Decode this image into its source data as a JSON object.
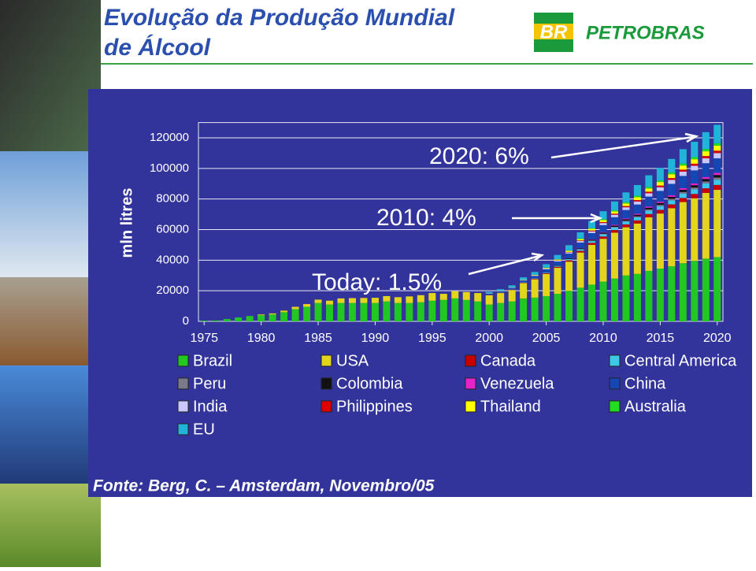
{
  "header": {
    "title_lines": [
      "Evolução da Produção Mundial",
      "de Álcool"
    ],
    "logo_mark": "BR",
    "logo_text": "PETROBRAS"
  },
  "chart_data": {
    "type": "stacked-bar",
    "y_label": "mln litres",
    "source": "Fonte: Berg, C. – Amsterdam, Novembro/05",
    "annotations": [
      "2020: 6%",
      "2010: 4%",
      "Today: 1.5%"
    ],
    "x": [
      1975,
      1976,
      1977,
      1978,
      1979,
      1980,
      1981,
      1982,
      1983,
      1984,
      1985,
      1986,
      1987,
      1988,
      1989,
      1990,
      1991,
      1992,
      1993,
      1994,
      1995,
      1996,
      1997,
      1998,
      1999,
      2000,
      2001,
      2002,
      2003,
      2004,
      2005,
      2006,
      2007,
      2008,
      2009,
      2010,
      2011,
      2012,
      2013,
      2014,
      2015,
      2016,
      2017,
      2018,
      2019,
      2020
    ],
    "xlim": [
      1974.5,
      2020.5
    ],
    "xticks": [
      1975,
      1980,
      1985,
      1990,
      1995,
      2000,
      2005,
      2010,
      2015,
      2020
    ],
    "ylim": [
      0,
      130000
    ],
    "yticks": [
      0,
      20000,
      40000,
      60000,
      80000,
      100000,
      120000
    ],
    "grid": true,
    "series": [
      {
        "name": "Brazil",
        "color": "#22c722",
        "values": [
          500,
          600,
          1500,
          2500,
          3500,
          4000,
          4500,
          6000,
          8000,
          9500,
          12000,
          11000,
          12000,
          12000,
          12000,
          12000,
          13000,
          12000,
          12000,
          12500,
          13500,
          14000,
          15000,
          14000,
          13000,
          11000,
          12000,
          13000,
          15000,
          15500,
          16500,
          18000,
          20000,
          22000,
          24000,
          26000,
          28000,
          30000,
          31000,
          33000,
          34500,
          36000,
          38000,
          39500,
          41000,
          42000
        ]
      },
      {
        "name": "USA",
        "color": "#e3d51c",
        "values": [
          0,
          0,
          0,
          0,
          0,
          500,
          700,
          1000,
          1500,
          1800,
          2200,
          2500,
          3000,
          3200,
          3300,
          3400,
          3500,
          3800,
          4300,
          4600,
          5000,
          4000,
          4700,
          5200,
          5500,
          6000,
          6500,
          7500,
          10000,
          12000,
          14500,
          17000,
          19000,
          23000,
          26000,
          28000,
          30000,
          31500,
          33000,
          35000,
          36000,
          38000,
          40000,
          41000,
          43000,
          44000
        ]
      },
      {
        "name": "Canada",
        "color": "#c80000",
        "values": [
          0,
          0,
          0,
          0,
          0,
          0,
          0,
          0,
          0,
          0,
          0,
          0,
          0,
          0,
          0,
          0,
          0,
          0,
          0,
          0,
          0,
          0,
          0,
          0,
          0,
          200,
          200,
          250,
          300,
          400,
          500,
          700,
          900,
          1100,
          1300,
          1500,
          1700,
          1900,
          2000,
          2200,
          2400,
          2500,
          2700,
          2800,
          3000,
          3200
        ]
      },
      {
        "name": "Central America",
        "color": "#3cc8e6",
        "values": [
          0,
          0,
          0,
          0,
          0,
          0,
          0,
          0,
          0,
          0,
          0,
          0,
          0,
          0,
          0,
          0,
          0,
          0,
          0,
          0,
          0,
          0,
          0,
          0,
          0,
          100,
          100,
          150,
          200,
          300,
          400,
          600,
          800,
          1000,
          1200,
          1400,
          1600,
          1800,
          2000,
          2200,
          2400,
          2600,
          2800,
          3000,
          3200,
          3400
        ]
      },
      {
        "name": "Peru",
        "color": "#7a7a8a",
        "values": [
          0,
          0,
          0,
          0,
          0,
          0,
          0,
          0,
          0,
          0,
          0,
          0,
          0,
          0,
          0,
          0,
          0,
          0,
          0,
          0,
          0,
          0,
          0,
          0,
          0,
          0,
          0,
          0,
          0,
          0,
          0,
          0,
          100,
          200,
          300,
          400,
          500,
          600,
          700,
          800,
          900,
          1000,
          1100,
          1200,
          1300,
          1400
        ]
      },
      {
        "name": "Colombia",
        "color": "#111111",
        "values": [
          0,
          0,
          0,
          0,
          0,
          0,
          0,
          0,
          0,
          0,
          0,
          0,
          0,
          0,
          0,
          0,
          0,
          0,
          0,
          0,
          0,
          0,
          0,
          0,
          0,
          0,
          0,
          0,
          0,
          0,
          100,
          300,
          400,
          500,
          600,
          700,
          800,
          900,
          1000,
          1100,
          1200,
          1300,
          1400,
          1500,
          1600,
          1700
        ]
      },
      {
        "name": "Venezuela",
        "color": "#e622c8",
        "values": [
          0,
          0,
          0,
          0,
          0,
          0,
          0,
          0,
          0,
          0,
          0,
          0,
          0,
          0,
          0,
          0,
          0,
          0,
          0,
          0,
          0,
          0,
          0,
          0,
          0,
          0,
          0,
          0,
          0,
          0,
          0,
          0,
          100,
          200,
          300,
          400,
          500,
          600,
          700,
          800,
          900,
          1000,
          1100,
          1200,
          1300,
          1400
        ]
      },
      {
        "name": "China",
        "color": "#1446b4",
        "values": [
          0,
          0,
          0,
          0,
          0,
          0,
          0,
          0,
          0,
          0,
          0,
          0,
          0,
          0,
          0,
          0,
          0,
          0,
          0,
          0,
          0,
          0,
          0,
          0,
          0,
          800,
          900,
          1000,
          1200,
          1500,
          2000,
          2500,
          3000,
          3500,
          4000,
          4500,
          5000,
          5500,
          6000,
          6500,
          7000,
          7500,
          8000,
          8500,
          9000,
          9500
        ]
      },
      {
        "name": "India",
        "color": "#c8c8ff",
        "values": [
          0,
          0,
          0,
          0,
          0,
          0,
          0,
          0,
          0,
          0,
          0,
          0,
          0,
          0,
          0,
          0,
          0,
          0,
          0,
          0,
          0,
          0,
          0,
          0,
          0,
          200,
          200,
          300,
          300,
          400,
          500,
          600,
          800,
          1000,
          1200,
          1400,
          1600,
          1800,
          2000,
          2200,
          2400,
          2600,
          2800,
          3000,
          3200,
          3400
        ]
      },
      {
        "name": "Philippines",
        "color": "#dc0000",
        "values": [
          0,
          0,
          0,
          0,
          0,
          0,
          0,
          0,
          0,
          0,
          0,
          0,
          0,
          0,
          0,
          0,
          0,
          0,
          0,
          0,
          0,
          0,
          0,
          0,
          0,
          0,
          0,
          0,
          0,
          0,
          100,
          200,
          300,
          400,
          500,
          600,
          700,
          800,
          900,
          1000,
          1100,
          1200,
          1300,
          1400,
          1500,
          1600
        ]
      },
      {
        "name": "Thailand",
        "color": "#ffff00",
        "values": [
          0,
          0,
          0,
          0,
          0,
          0,
          0,
          0,
          0,
          0,
          0,
          0,
          0,
          0,
          0,
          0,
          0,
          0,
          0,
          0,
          0,
          0,
          0,
          0,
          0,
          100,
          100,
          100,
          200,
          300,
          400,
          500,
          700,
          900,
          1100,
          1300,
          1500,
          1700,
          1900,
          2100,
          2300,
          2500,
          2700,
          2900,
          3100,
          3300
        ]
      },
      {
        "name": "Australia",
        "color": "#22dc22",
        "values": [
          0,
          0,
          0,
          0,
          0,
          0,
          0,
          0,
          0,
          0,
          0,
          0,
          0,
          0,
          0,
          0,
          0,
          0,
          0,
          0,
          0,
          0,
          0,
          0,
          0,
          50,
          50,
          50,
          100,
          100,
          150,
          200,
          300,
          400,
          500,
          600,
          700,
          800,
          900,
          1000,
          1100,
          1200,
          1300,
          1400,
          1500,
          1600
        ]
      },
      {
        "name": "EU",
        "color": "#22b4d8",
        "values": [
          0,
          0,
          0,
          0,
          0,
          0,
          0,
          0,
          0,
          0,
          0,
          0,
          0,
          0,
          0,
          0,
          0,
          0,
          0,
          0,
          0,
          0,
          0,
          0,
          0,
          800,
          1000,
          1200,
          1500,
          1800,
          2200,
          2800,
          3400,
          4000,
          4600,
          5200,
          5800,
          6400,
          7000,
          7600,
          8200,
          8800,
          9400,
          10000,
          11000,
          12000
        ]
      }
    ]
  }
}
